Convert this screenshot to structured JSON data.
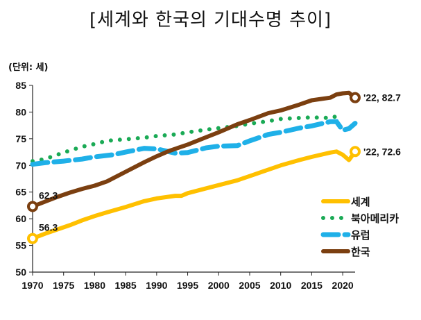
{
  "chart_data": {
    "type": "line",
    "title": "[세계와 한국의 기대수명 추이]",
    "unit_label": "(단위: 세)",
    "ylim": [
      50,
      85
    ],
    "y_ticks": [
      50,
      55,
      60,
      65,
      70,
      75,
      80,
      85
    ],
    "x_ticks": [
      1970,
      1975,
      1980,
      1985,
      1990,
      1995,
      2000,
      2005,
      2010,
      2015,
      2020
    ],
    "x_range": [
      1970,
      2022
    ],
    "series": [
      {
        "name": "세계",
        "color": "#FFC000",
        "style": "solid",
        "x": [
          1970,
          1972,
          1974,
          1976,
          1978,
          1980,
          1982,
          1985,
          1988,
          1990,
          1993,
          1994,
          1995,
          1998,
          2000,
          2003,
          2005,
          2008,
          2010,
          2013,
          2015,
          2018,
          2019,
          2020,
          2021,
          2022
        ],
        "values": [
          56.3,
          57.2,
          58.0,
          58.8,
          59.7,
          60.5,
          61.2,
          62.2,
          63.3,
          63.8,
          64.3,
          64.3,
          64.8,
          65.7,
          66.3,
          67.2,
          68.0,
          69.2,
          70.0,
          71.0,
          71.6,
          72.4,
          72.6,
          72.0,
          71.0,
          72.6
        ],
        "start_label": "56.3",
        "end_label": "'22, 72.6"
      },
      {
        "name": "북아메리카",
        "color": "#1AAA55",
        "style": "dotted",
        "x": [
          1970,
          1972,
          1974,
          1976,
          1978,
          1980,
          1982,
          1985,
          1988,
          1990,
          1993,
          1995,
          1998,
          2000,
          2003,
          2005,
          2008,
          2010,
          2013,
          2015,
          2018,
          2019
        ],
        "values": [
          70.8,
          71.2,
          72.0,
          72.8,
          73.5,
          74.0,
          74.6,
          74.9,
          75.2,
          75.5,
          75.8,
          76.2,
          76.7,
          77.0,
          77.4,
          77.8,
          78.3,
          78.7,
          78.9,
          79.0,
          78.9,
          79.2
        ]
      },
      {
        "name": "유럽",
        "color": "#1FB0E8",
        "style": "dashed",
        "x": [
          1970,
          1972,
          1975,
          1978,
          1980,
          1983,
          1985,
          1988,
          1990,
          1993,
          1995,
          1998,
          2000,
          2003,
          2005,
          2008,
          2010,
          2013,
          2015,
          2018,
          2019,
          2020,
          2021,
          2022
        ],
        "values": [
          70.2,
          70.5,
          70.8,
          71.2,
          71.6,
          72.0,
          72.5,
          73.2,
          73.1,
          72.3,
          72.4,
          73.3,
          73.6,
          73.7,
          74.6,
          75.8,
          76.2,
          77.0,
          77.4,
          78.2,
          78.2,
          76.6,
          76.9,
          77.9
        ]
      },
      {
        "name": "한국",
        "color": "#7B3F10",
        "style": "solid",
        "x": [
          1970,
          1972,
          1974,
          1976,
          1978,
          1980,
          1982,
          1985,
          1988,
          1990,
          1992,
          1995,
          1998,
          2000,
          2003,
          2005,
          2008,
          2010,
          2013,
          2015,
          2018,
          2019,
          2020,
          2021,
          2022
        ],
        "values": [
          62.3,
          63.2,
          64.1,
          64.9,
          65.6,
          66.2,
          67.0,
          68.8,
          70.6,
          71.7,
          72.7,
          73.9,
          75.3,
          76.2,
          77.7,
          78.5,
          79.8,
          80.3,
          81.4,
          82.2,
          82.7,
          83.3,
          83.5,
          83.6,
          82.7
        ],
        "start_label": "62.3",
        "end_label": "'22, 82.7"
      }
    ],
    "legend": {
      "position": "right",
      "items": [
        "세계",
        "북아메리카",
        "유럽",
        "한국"
      ]
    }
  }
}
